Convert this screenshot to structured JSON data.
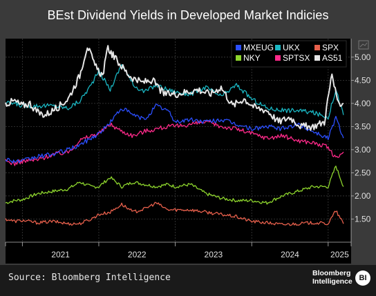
{
  "title": "BEst Dividend Yields in Developed Market Indicies",
  "source": "Source: Bloomberg Intelligence",
  "brand": {
    "line1": "Bloomberg",
    "line2": "Intelligence",
    "badge": "BI"
  },
  "chart_data": {
    "type": "line",
    "ylim": [
      1.0,
      5.4
    ],
    "y_ticks": [
      1.5,
      2.0,
      2.5,
      3.0,
      3.5,
      4.0,
      4.5,
      5.0
    ],
    "y_tick_labels": [
      "1.50",
      "2.00",
      "2.50",
      "3.00",
      "3.50",
      "4.00",
      "4.50",
      "5.00"
    ],
    "xlim": [
      2020.78,
      2025.3
    ],
    "x_ticks": [
      2021,
      2022,
      2023,
      2024,
      2025
    ],
    "x_tick_labels": [
      "2021",
      "2022",
      "2023",
      "2024",
      "2025"
    ],
    "grid": true,
    "legend_position": "top-right",
    "series": [
      {
        "name": "MXEUG",
        "color": "#2b4fff",
        "width": 1.3,
        "x": [
          2020.78,
          2020.9,
          2021.0,
          2021.2,
          2021.4,
          2021.6,
          2021.75,
          2021.9,
          2022.0,
          2022.1,
          2022.2,
          2022.3,
          2022.45,
          2022.6,
          2022.75,
          2022.9,
          2023.0,
          2023.2,
          2023.4,
          2023.6,
          2023.8,
          2024.0,
          2024.2,
          2024.4,
          2024.6,
          2024.8,
          2025.0,
          2025.1,
          2025.2
        ],
        "y": [
          2.8,
          2.75,
          2.75,
          2.85,
          2.9,
          3.0,
          3.1,
          3.25,
          3.35,
          3.5,
          3.7,
          3.9,
          3.75,
          3.65,
          3.95,
          3.85,
          3.6,
          3.65,
          3.6,
          3.65,
          3.55,
          3.45,
          3.5,
          3.45,
          3.55,
          3.4,
          3.25,
          3.7,
          3.25
        ]
      },
      {
        "name": "UKX",
        "color": "#1ab6c2",
        "width": 1.3,
        "x": [
          2020.78,
          2020.9,
          2021.0,
          2021.2,
          2021.4,
          2021.6,
          2021.75,
          2021.9,
          2022.0,
          2022.15,
          2022.3,
          2022.45,
          2022.6,
          2022.75,
          2022.9,
          2023.0,
          2023.2,
          2023.4,
          2023.6,
          2023.8,
          2024.0,
          2024.2,
          2024.4,
          2024.6,
          2024.8,
          2025.0,
          2025.1,
          2025.2
        ],
        "y": [
          4.0,
          4.0,
          3.95,
          3.95,
          3.95,
          3.9,
          4.05,
          4.4,
          4.7,
          4.3,
          4.85,
          4.4,
          4.25,
          4.4,
          4.3,
          4.25,
          4.2,
          4.35,
          4.15,
          4.4,
          4.1,
          3.9,
          3.85,
          3.85,
          3.8,
          3.7,
          4.3,
          3.75
        ]
      },
      {
        "name": "SPX",
        "color": "#e8604c",
        "width": 1.3,
        "x": [
          2020.78,
          2020.9,
          2021.0,
          2021.2,
          2021.4,
          2021.6,
          2021.75,
          2021.9,
          2022.0,
          2022.15,
          2022.3,
          2022.45,
          2022.6,
          2022.75,
          2022.9,
          2023.0,
          2023.2,
          2023.4,
          2023.6,
          2023.8,
          2024.0,
          2024.2,
          2024.4,
          2024.6,
          2024.8,
          2025.0,
          2025.1,
          2025.2
        ],
        "y": [
          1.5,
          1.45,
          1.47,
          1.42,
          1.45,
          1.4,
          1.4,
          1.5,
          1.6,
          1.65,
          1.82,
          1.65,
          1.72,
          1.85,
          1.7,
          1.7,
          1.7,
          1.65,
          1.6,
          1.55,
          1.45,
          1.42,
          1.38,
          1.4,
          1.42,
          1.4,
          1.68,
          1.4
        ]
      },
      {
        "name": "NKY",
        "color": "#8ed62d",
        "width": 1.3,
        "x": [
          2020.78,
          2020.9,
          2021.0,
          2021.2,
          2021.4,
          2021.6,
          2021.75,
          2021.9,
          2022.0,
          2022.15,
          2022.3,
          2022.45,
          2022.6,
          2022.75,
          2022.9,
          2023.0,
          2023.2,
          2023.4,
          2023.6,
          2023.8,
          2024.0,
          2024.2,
          2024.4,
          2024.6,
          2024.8,
          2025.0,
          2025.1,
          2025.2
        ],
        "y": [
          1.85,
          1.9,
          1.92,
          2.05,
          2.1,
          2.15,
          2.3,
          2.2,
          2.2,
          2.4,
          2.2,
          2.3,
          2.25,
          2.2,
          2.25,
          2.2,
          2.25,
          2.05,
          1.95,
          1.9,
          1.9,
          1.85,
          2.0,
          2.1,
          2.2,
          2.2,
          2.65,
          2.2
        ]
      },
      {
        "name": "SPTSX",
        "color": "#ff2a8a",
        "width": 1.3,
        "x": [
          2020.78,
          2020.9,
          2021.0,
          2021.2,
          2021.4,
          2021.6,
          2021.75,
          2021.9,
          2022.0,
          2022.15,
          2022.3,
          2022.45,
          2022.6,
          2022.75,
          2022.9,
          2023.0,
          2023.2,
          2023.4,
          2023.6,
          2023.8,
          2024.0,
          2024.2,
          2024.4,
          2024.6,
          2024.8,
          2025.0,
          2025.1,
          2025.2
        ],
        "y": [
          2.75,
          2.7,
          2.75,
          2.78,
          2.9,
          2.95,
          3.2,
          3.3,
          3.35,
          3.55,
          3.4,
          3.3,
          3.4,
          3.45,
          3.5,
          3.5,
          3.55,
          3.6,
          3.5,
          3.45,
          3.35,
          3.25,
          3.3,
          3.2,
          3.15,
          3.05,
          2.8,
          2.95
        ]
      },
      {
        "name": "AS51",
        "color": "#e6e6e6",
        "width": 2.0,
        "x": [
          2020.78,
          2020.9,
          2021.0,
          2021.1,
          2021.2,
          2021.3,
          2021.45,
          2021.6,
          2021.75,
          2021.85,
          2021.95,
          2022.05,
          2022.12,
          2022.2,
          2022.3,
          2022.4,
          2022.55,
          2022.7,
          2022.85,
          2023.0,
          2023.15,
          2023.3,
          2023.45,
          2023.6,
          2023.75,
          2023.9,
          2024.05,
          2024.2,
          2024.35,
          2024.5,
          2024.65,
          2024.8,
          2024.95,
          2025.05,
          2025.12,
          2025.2
        ],
        "y": [
          4.0,
          4.05,
          3.95,
          4.0,
          3.8,
          3.75,
          3.9,
          4.1,
          4.6,
          5.25,
          4.8,
          4.6,
          5.2,
          5.0,
          4.8,
          4.6,
          4.45,
          4.5,
          4.2,
          4.2,
          4.25,
          4.3,
          4.2,
          4.35,
          3.95,
          4.1,
          3.9,
          3.85,
          3.6,
          3.7,
          3.5,
          3.5,
          3.6,
          4.65,
          4.0,
          4.0
        ]
      }
    ]
  }
}
